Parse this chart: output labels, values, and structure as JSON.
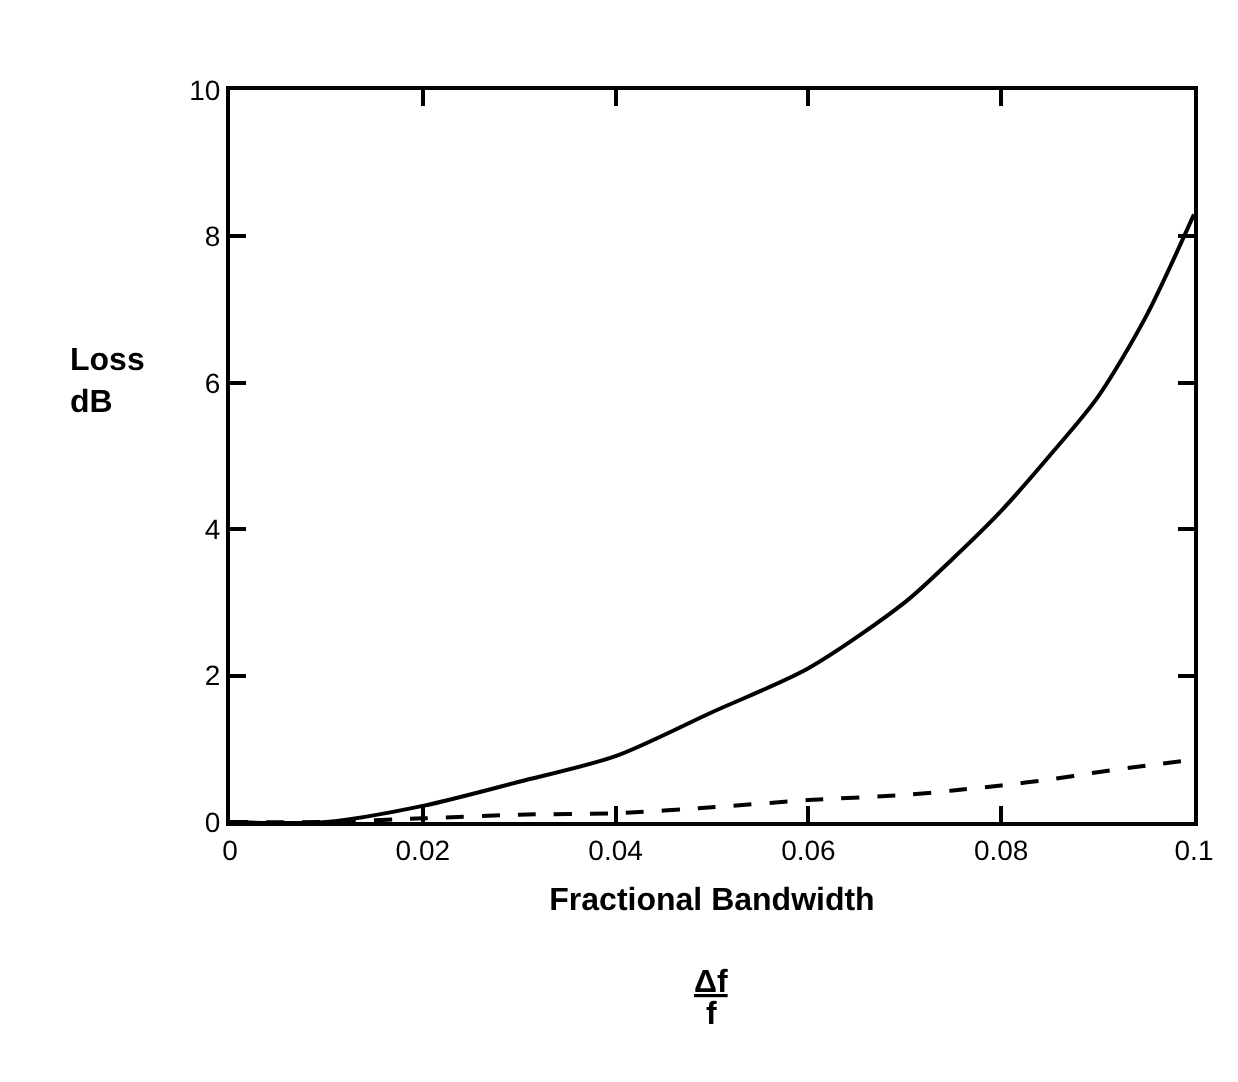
{
  "chart_data": {
    "type": "line",
    "xlabel": "Fractional Bandwidth",
    "ylabel": "Loss\ndB",
    "annotations": [
      "Δf",
      "f"
    ],
    "x": [
      0,
      0.01,
      0.02,
      0.03,
      0.04,
      0.05,
      0.06,
      0.07,
      0.075,
      0.08,
      0.085,
      0.09,
      0.095,
      0.1
    ],
    "series": [
      {
        "color": "#000000",
        "line_style": "solid",
        "values": [
          0,
          0,
          0.22,
          0.55,
          0.9,
          1.5,
          2.1,
          3.0,
          3.6,
          4.25,
          5.0,
          5.8,
          6.9,
          8.3
        ]
      },
      {
        "color": "#000000",
        "line_style": "dashed",
        "values": [
          0,
          0,
          0.05,
          0.1,
          0.12,
          0.2,
          0.3,
          0.37,
          0.43,
          0.5,
          0.58,
          0.68,
          0.77,
          0.85
        ]
      }
    ],
    "xlim": [
      0,
      0.1
    ],
    "xticks": [
      0,
      0.02,
      0.04,
      0.06,
      0.08,
      0.1
    ],
    "ylim": [
      0,
      10
    ],
    "yticks": [
      0,
      2,
      4,
      6,
      8,
      10
    ],
    "legend": false,
    "marker": "none"
  }
}
